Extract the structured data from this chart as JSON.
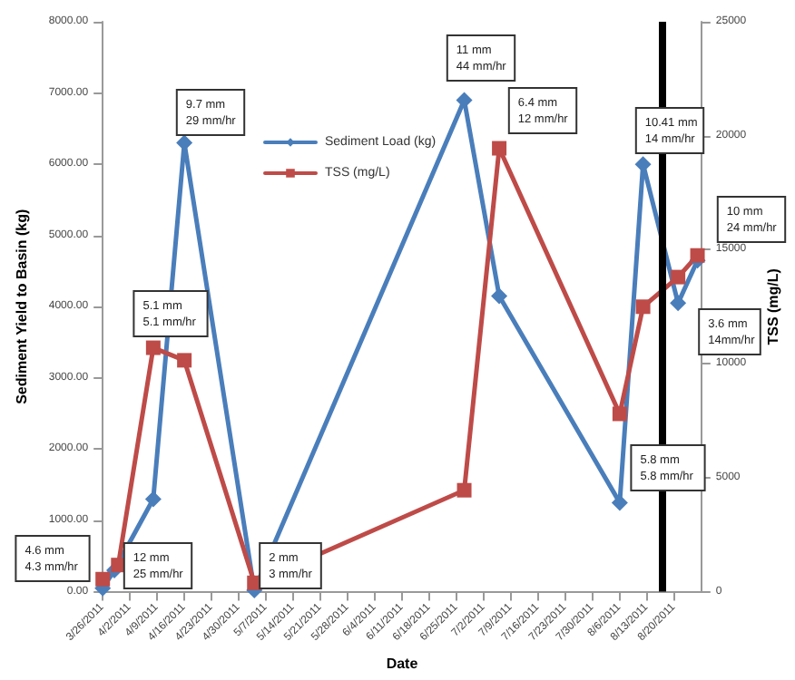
{
  "chart_data": {
    "type": "line",
    "xlabel": "Date",
    "ylabel": "Sediment Yield to Basin (kg)",
    "y2label": "TSS (mg/L)",
    "xlim": [
      "2011-03-26",
      "2011-08-27"
    ],
    "xticks": [
      {
        "value": "2011-03-26",
        "label": "3/26/2011"
      },
      {
        "value": "2011-04-02",
        "label": "4/2/2011"
      },
      {
        "value": "2011-04-09",
        "label": "4/9/2011"
      },
      {
        "value": "2011-04-16",
        "label": "4/16/2011"
      },
      {
        "value": "2011-04-23",
        "label": "4/23/2011"
      },
      {
        "value": "2011-04-30",
        "label": "4/30/2011"
      },
      {
        "value": "2011-05-07",
        "label": "5/7/2011"
      },
      {
        "value": "2011-05-14",
        "label": "5/14/2011"
      },
      {
        "value": "2011-05-21",
        "label": "5/21/2011"
      },
      {
        "value": "2011-05-28",
        "label": "5/28/2011"
      },
      {
        "value": "2011-06-04",
        "label": "6/4/2011"
      },
      {
        "value": "2011-06-11",
        "label": "6/11/2011"
      },
      {
        "value": "2011-06-18",
        "label": "6/18/2011"
      },
      {
        "value": "2011-06-25",
        "label": "6/25/2011"
      },
      {
        "value": "2011-07-02",
        "label": "7/2/2011"
      },
      {
        "value": "2011-07-09",
        "label": "7/9/2011"
      },
      {
        "value": "2011-07-16",
        "label": "7/16/2011"
      },
      {
        "value": "2011-07-23",
        "label": "7/23/2011"
      },
      {
        "value": "2011-07-30",
        "label": "7/30/2011"
      },
      {
        "value": "2011-08-06",
        "label": "8/6/2011"
      },
      {
        "value": "2011-08-13",
        "label": "8/13/2011"
      },
      {
        "value": "2011-08-20",
        "label": "8/20/2011"
      }
    ],
    "ylim": [
      0,
      8000
    ],
    "yticks": [
      {
        "value": 0,
        "label": "0.00"
      },
      {
        "value": 1000,
        "label": "1000.00"
      },
      {
        "value": 2000,
        "label": "2000.00"
      },
      {
        "value": 3000,
        "label": "3000.00"
      },
      {
        "value": 4000,
        "label": "4000.00"
      },
      {
        "value": 5000,
        "label": "5000.00"
      },
      {
        "value": 6000,
        "label": "6000.00"
      },
      {
        "value": 7000,
        "label": "7000.00"
      },
      {
        "value": 8000,
        "label": "8000.00"
      }
    ],
    "y2lim": [
      0,
      25000
    ],
    "y2ticks": [
      0,
      5000,
      10000,
      15000,
      20000,
      25000
    ],
    "series": [
      {
        "name": "Sediment Load (kg)",
        "color": "#4a7ebb",
        "marker": "diamond",
        "x": [
          "2011-03-26",
          "2011-03-29",
          "2011-04-08",
          "2011-04-16",
          "2011-05-04",
          "2011-06-27",
          "2011-07-06",
          "2011-08-06",
          "2011-08-12",
          "2011-08-21",
          "2011-08-26"
        ],
        "values": [
          50,
          300,
          1300,
          6300,
          20,
          6900,
          4150,
          1250,
          6000,
          4050,
          4650
        ]
      },
      {
        "name": "TSS (mg/L)",
        "color": "#be4b48",
        "marker": "square",
        "axis": "y2",
        "x": [
          "2011-03-26",
          "2011-03-30",
          "2011-04-08",
          "2011-04-16",
          "2011-05-04",
          "2011-06-27",
          "2011-07-06",
          "2011-08-06",
          "2011-08-12",
          "2011-08-21",
          "2011-08-26"
        ],
        "values": [
          550,
          1170,
          10700,
          10150,
          390,
          4450,
          19450,
          7800,
          12500,
          13800,
          14750
        ]
      }
    ],
    "ref_lines": [
      {
        "axis": "x",
        "value": "2011-08-17",
        "color": "#000000"
      }
    ],
    "annotations": [
      "4.6 mm\n4.3 mm/hr",
      "12 mm\n25 mm/hr",
      "5.1 mm\n5.1 mm/hr",
      "9.7 mm\n29 mm/hr",
      "2 mm\n3 mm/hr",
      "11 mm\n44 mm/hr",
      "6.4 mm\n12 mm/hr",
      "10.41 mm\n14 mm/hr",
      "10 mm\n24 mm/hr",
      "3.6 mm\n14mm/hr",
      "5.8 mm\n5.8 mm/hr"
    ],
    "grid": false,
    "legend": "top",
    "line_style": "solid"
  }
}
